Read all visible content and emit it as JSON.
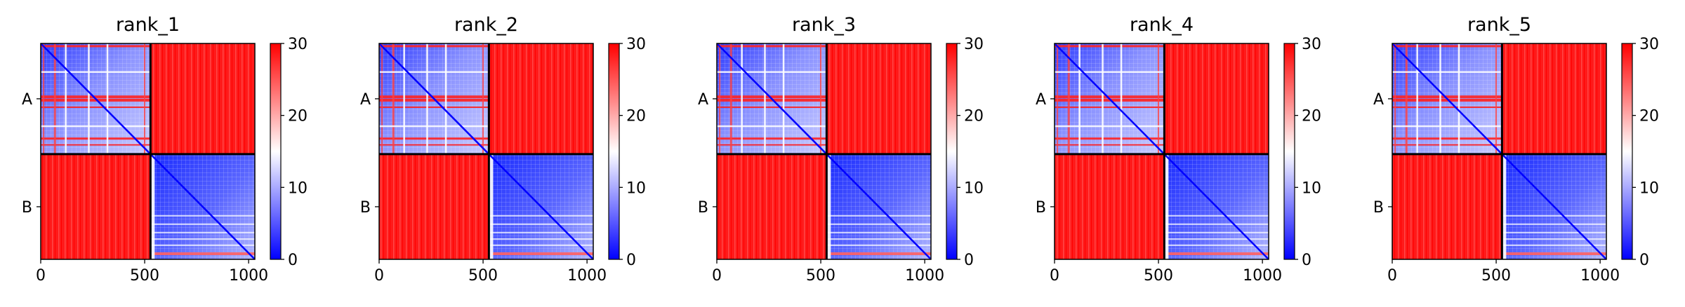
{
  "chart_data": [
    {
      "type": "heatmap",
      "title": "rank_1",
      "xlabel": "",
      "ylabel": "",
      "x_ticks": [
        0,
        500,
        1000
      ],
      "xlim": [
        0,
        1030
      ],
      "chain_labels": [
        "A",
        "B"
      ],
      "chain_boundary": 528,
      "colorbar": {
        "vmin": 0,
        "vmax": 30,
        "ticks": [
          0,
          10,
          20,
          30
        ],
        "colormap": "bwr"
      },
      "blocks": {
        "A-A": "mixed, mostly blue/white with blue diagonal",
        "A-B": "~30 (red)",
        "B-A": "~30 (red)",
        "B-B": "mostly blue, low"
      }
    },
    {
      "type": "heatmap",
      "title": "rank_2",
      "xlabel": "",
      "ylabel": "",
      "x_ticks": [
        0,
        500,
        1000
      ],
      "xlim": [
        0,
        1030
      ],
      "chain_labels": [
        "A",
        "B"
      ],
      "chain_boundary": 528,
      "colorbar": {
        "vmin": 0,
        "vmax": 30,
        "ticks": [
          0,
          10,
          20,
          30
        ],
        "colormap": "bwr"
      },
      "blocks": {
        "A-A": "mixed, mostly blue/white with blue diagonal",
        "A-B": "~30 (red)",
        "B-A": "~30 (red)",
        "B-B": "mostly blue, low"
      }
    },
    {
      "type": "heatmap",
      "title": "rank_3",
      "xlabel": "",
      "ylabel": "",
      "x_ticks": [
        0,
        500,
        1000
      ],
      "xlim": [
        0,
        1030
      ],
      "chain_labels": [
        "A",
        "B"
      ],
      "chain_boundary": 528,
      "colorbar": {
        "vmin": 0,
        "vmax": 30,
        "ticks": [
          0,
          10,
          20,
          30
        ],
        "colormap": "bwr"
      },
      "blocks": {
        "A-A": "mixed, mostly blue/white with blue diagonal",
        "A-B": "~30 (red)",
        "B-A": "~30 (red)",
        "B-B": "mostly blue, low"
      }
    },
    {
      "type": "heatmap",
      "title": "rank_4",
      "xlabel": "",
      "ylabel": "",
      "x_ticks": [
        0,
        500,
        1000
      ],
      "xlim": [
        0,
        1030
      ],
      "chain_labels": [
        "A",
        "B"
      ],
      "chain_boundary": 528,
      "colorbar": {
        "vmin": 0,
        "vmax": 30,
        "ticks": [
          0,
          10,
          20,
          30
        ],
        "colormap": "bwr"
      },
      "blocks": {
        "A-A": "mixed, mostly blue/white with blue diagonal",
        "A-B": "~30 (red)",
        "B-A": "~30 (red)",
        "B-B": "mostly blue, low"
      }
    },
    {
      "type": "heatmap",
      "title": "rank_5",
      "xlabel": "",
      "ylabel": "",
      "x_ticks": [
        0,
        500,
        1000
      ],
      "xlim": [
        0,
        1030
      ],
      "chain_labels": [
        "A",
        "B"
      ],
      "chain_boundary": 528,
      "colorbar": {
        "vmin": 0,
        "vmax": 30,
        "ticks": [
          0,
          10,
          20,
          30
        ],
        "colormap": "bwr"
      },
      "blocks": {
        "A-A": "mixed, mostly blue/white with blue diagonal",
        "A-B": "~30 (red)",
        "B-A": "~30 (red)",
        "B-B": "mostly blue, low"
      }
    }
  ],
  "colors": {
    "low": "#0000ff",
    "mid": "#ffffff",
    "high": "#ff0000",
    "frame": "#000000"
  }
}
